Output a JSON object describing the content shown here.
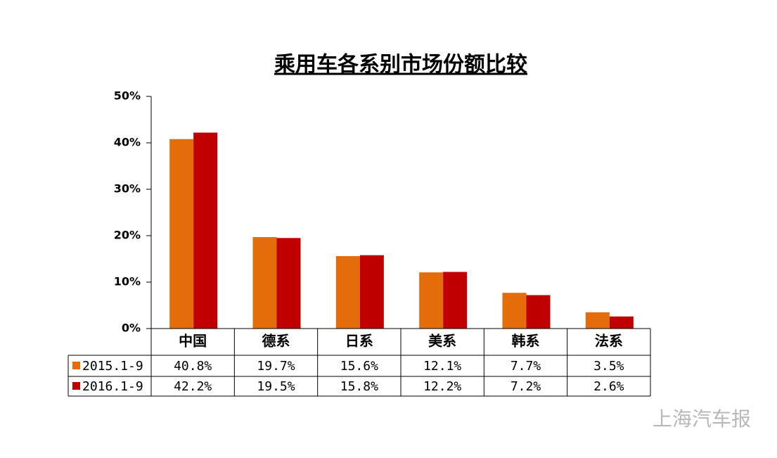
{
  "chart_data": {
    "type": "bar",
    "title": "乘用车各系别市场份额比较",
    "categories": [
      "中国",
      "德系",
      "日系",
      "美系",
      "韩系",
      "法系"
    ],
    "series": [
      {
        "name": "2015.1-9",
        "color": "#e46c0a",
        "values": [
          40.8,
          19.7,
          15.6,
          12.1,
          7.7,
          3.5
        ],
        "value_labels": [
          "40.8%",
          "19.7%",
          "15.6%",
          "12.1%",
          "7.7%",
          "3.5%"
        ]
      },
      {
        "name": "2016.1-9",
        "color": "#c00000",
        "values": [
          42.2,
          19.5,
          15.8,
          12.2,
          7.2,
          2.6
        ],
        "value_labels": [
          "42.2%",
          "19.5%",
          "15.8%",
          "12.2%",
          "7.2%",
          "2.6%"
        ]
      }
    ],
    "ylim": [
      0,
      50
    ],
    "yticks": [
      {
        "value": 0,
        "label": "0%"
      },
      {
        "value": 10,
        "label": "10%"
      },
      {
        "value": 20,
        "label": "20%"
      },
      {
        "value": 30,
        "label": "30%"
      },
      {
        "value": 40,
        "label": "40%"
      },
      {
        "value": 50,
        "label": "50%"
      }
    ],
    "watermark": "上海汽车报"
  }
}
